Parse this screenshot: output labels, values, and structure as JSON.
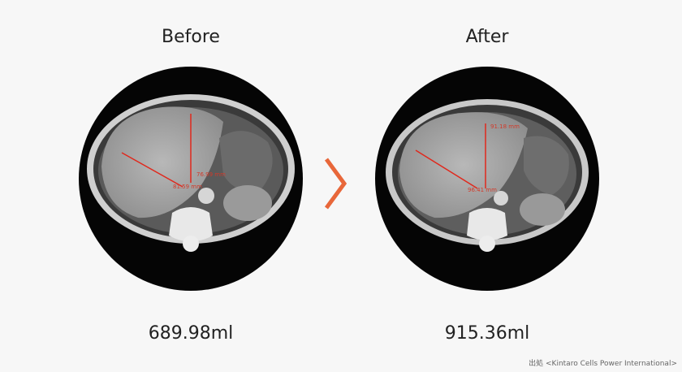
{
  "panels": [
    {
      "title": "Before",
      "volume": "689.98ml",
      "measurements": [
        "76.99 mm",
        "81.59 mm"
      ]
    },
    {
      "title": "After",
      "volume": "915.36ml",
      "measurements": [
        "91.18 mm",
        "96.41 mm"
      ]
    }
  ],
  "source": "出処 <Kintaro Cells Power International>"
}
